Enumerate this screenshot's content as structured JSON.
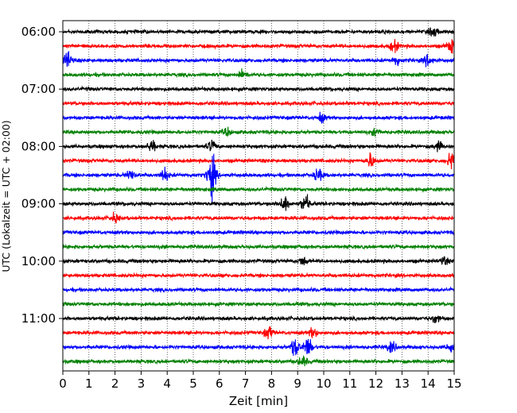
{
  "chart_data": {
    "type": "line",
    "title": "",
    "xlabel": "Zeit  [min]",
    "ylabel": "UTC (Lokalzeit = UTC + 02:00)",
    "xlim": [
      0,
      15
    ],
    "x_ticks": [
      "0",
      "1",
      "2",
      "3",
      "4",
      "5",
      "6",
      "7",
      "8",
      "9",
      "10",
      "11",
      "12",
      "13",
      "14",
      "15"
    ],
    "y_ticks": [
      "06:00",
      "07:00",
      "08:00",
      "09:00",
      "10:00",
      "11:00"
    ],
    "row_interval_minutes": 15,
    "first_row": "06:00",
    "grid": "vertical dotted",
    "trace_colors": [
      "#000000",
      "#ff0000",
      "#0000ff",
      "#008000"
    ],
    "rows": [
      {
        "start": "06:00",
        "events": [
          [
            14.2,
            1.6
          ]
        ]
      },
      {
        "start": "06:15",
        "events": [
          [
            12.7,
            2.0
          ],
          [
            14.9,
            2.5
          ]
        ]
      },
      {
        "start": "06:30",
        "events": [
          [
            0.2,
            3.0
          ],
          [
            12.8,
            2.0
          ],
          [
            14.0,
            1.8
          ]
        ]
      },
      {
        "start": "06:45",
        "events": [
          [
            6.9,
            1.5
          ]
        ]
      },
      {
        "start": "07:00",
        "events": []
      },
      {
        "start": "07:15",
        "events": []
      },
      {
        "start": "07:30",
        "events": [
          [
            9.9,
            1.5
          ]
        ]
      },
      {
        "start": "07:45",
        "events": [
          [
            6.3,
            1.3
          ],
          [
            12.0,
            1.4
          ]
        ]
      },
      {
        "start": "08:00",
        "events": [
          [
            3.4,
            2.2
          ],
          [
            5.7,
            2.0
          ],
          [
            14.4,
            1.6
          ]
        ]
      },
      {
        "start": "08:15",
        "events": [
          [
            11.8,
            2.5
          ],
          [
            14.9,
            3.0
          ]
        ]
      },
      {
        "start": "08:30",
        "events": [
          [
            2.6,
            2.0
          ],
          [
            3.9,
            2.3
          ],
          [
            5.7,
            8.0
          ],
          [
            9.8,
            2.5
          ]
        ]
      },
      {
        "start": "08:45",
        "events": []
      },
      {
        "start": "09:00",
        "events": [
          [
            8.5,
            3.0
          ],
          [
            9.3,
            3.0
          ]
        ]
      },
      {
        "start": "09:15",
        "events": [
          [
            2.0,
            1.5
          ]
        ]
      },
      {
        "start": "09:30",
        "events": []
      },
      {
        "start": "09:45",
        "events": []
      },
      {
        "start": "10:00",
        "events": [
          [
            9.2,
            1.6
          ],
          [
            14.6,
            1.5
          ]
        ]
      },
      {
        "start": "10:15",
        "events": []
      },
      {
        "start": "10:30",
        "events": []
      },
      {
        "start": "10:45",
        "events": []
      },
      {
        "start": "11:00",
        "events": [
          [
            14.3,
            1.8
          ]
        ]
      },
      {
        "start": "11:15",
        "events": [
          [
            7.9,
            2.2
          ],
          [
            9.6,
            1.6
          ]
        ]
      },
      {
        "start": "11:30",
        "events": [
          [
            8.9,
            3.2
          ],
          [
            9.4,
            3.5
          ],
          [
            12.6,
            2.0
          ],
          [
            14.9,
            2.2
          ]
        ]
      },
      {
        "start": "11:45",
        "events": [
          [
            9.2,
            1.8
          ]
        ]
      }
    ]
  }
}
